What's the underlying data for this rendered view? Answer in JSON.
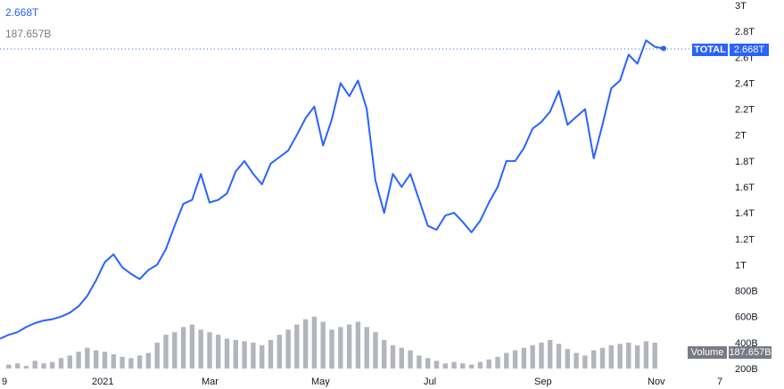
{
  "legend": {
    "value": "2.668T",
    "volume": "187.657B"
  },
  "price_badge": {
    "label": "TOTAL",
    "value": "2.668T"
  },
  "volume_badge": {
    "label": "Volume",
    "value": "187.657B"
  },
  "colors": {
    "line": "#2962ff",
    "volume_bars": "#b2b5be",
    "badge_blue": "#2962ff",
    "badge_gray": "#787b86"
  },
  "chart_data": {
    "type": "line",
    "title": "",
    "xlabel": "",
    "ylabel": "",
    "y_unit": "USD",
    "ylim": [
      180000000000,
      3000000000000
    ],
    "y_ticks": [
      "3T",
      "2.8T",
      "2.6T",
      "2.4T",
      "2.2T",
      "2T",
      "1.8T",
      "1.6T",
      "1.4T",
      "1.2T",
      "1T",
      "800B",
      "600B",
      "400B",
      "200B"
    ],
    "x_ticks": [
      "9",
      "2021",
      "Mar",
      "May",
      "Jul",
      "Sep",
      "Nov",
      "7"
    ],
    "series": [
      {
        "values_trillions": [
          0.43,
          0.46,
          0.48,
          0.52,
          0.55,
          0.57,
          0.58,
          0.6,
          0.63,
          0.68,
          0.76,
          0.88,
          1.02,
          1.08,
          0.98,
          0.93,
          0.89,
          0.96,
          1.0,
          1.12,
          1.3,
          1.47,
          1.5,
          1.7,
          1.48,
          1.5,
          1.55,
          1.72,
          1.8,
          1.7,
          1.62,
          1.78,
          1.83,
          1.88,
          2.0,
          2.13,
          2.22,
          1.92,
          2.12,
          2.4,
          2.3,
          2.42,
          2.2,
          1.65,
          1.4,
          1.7,
          1.6,
          1.7,
          1.5,
          1.3,
          1.27,
          1.38,
          1.4,
          1.33,
          1.25,
          1.34,
          1.48,
          1.6,
          1.8,
          1.8,
          1.9,
          2.05,
          2.1,
          2.18,
          2.34,
          2.08,
          2.14,
          2.2,
          1.82,
          2.08,
          2.36,
          2.42,
          2.62,
          2.55,
          2.73,
          2.68,
          2.668
        ],
        "volume_billions": [
          180,
          230,
          240,
          220,
          260,
          240,
          250,
          280,
          300,
          330,
          360,
          340,
          330,
          310,
          290,
          280,
          300,
          320,
          400,
          460,
          480,
          520,
          540,
          500,
          480,
          460,
          430,
          420,
          410,
          400,
          380,
          420,
          460,
          500,
          540,
          580,
          600,
          560,
          500,
          520,
          540,
          560,
          520,
          480,
          420,
          380,
          360,
          340,
          300,
          280,
          260,
          240,
          250,
          240,
          230,
          250,
          270,
          290,
          320,
          340,
          360,
          380,
          400,
          420,
          390,
          350,
          320,
          300,
          340,
          360,
          380,
          390,
          400,
          380,
          410,
          400,
          187.657
        ]
      }
    ],
    "grid": false,
    "legend": "top-left"
  }
}
